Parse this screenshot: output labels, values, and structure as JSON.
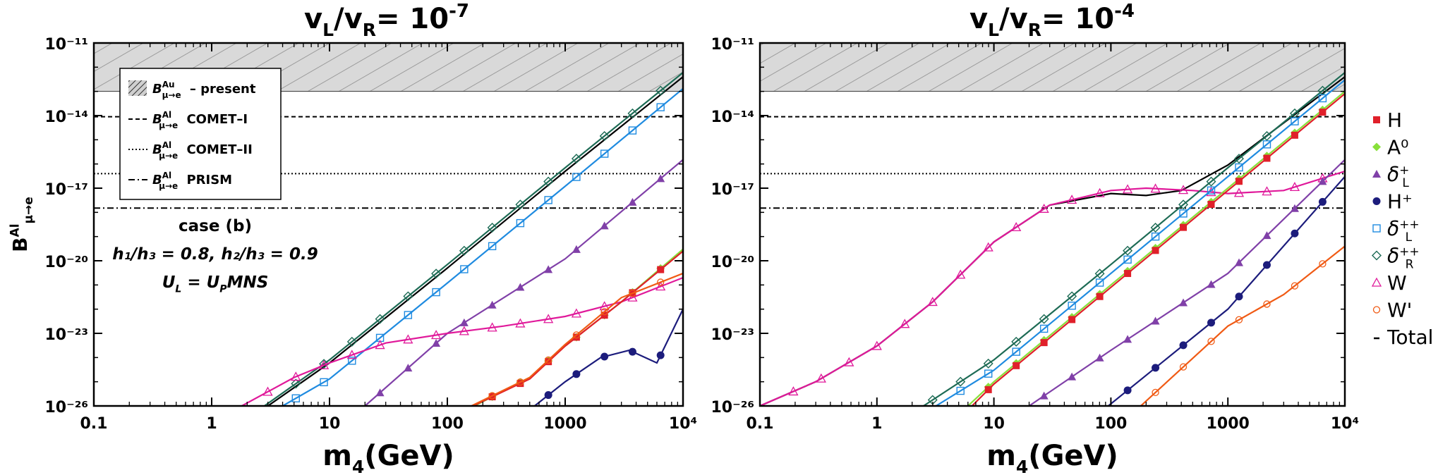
{
  "chart_data": [
    {
      "type": "line",
      "title": "v_L/v_R= 10^{-7}",
      "xlabel": "m_4(GeV)",
      "ylabel": "B^{Al}_{μ→e}",
      "x_scale": "log",
      "y_scale": "log",
      "xlim": [
        0.1,
        10000
      ],
      "ylim": [
        1e-26,
        1e-11
      ],
      "x_ticks": [
        "0.1",
        "1",
        "10",
        "100",
        "1000",
        "10⁴"
      ],
      "y_ticks": [
        "10⁻²⁶",
        "10⁻²³",
        "10⁻²⁰",
        "10⁻¹⁷",
        "10⁻¹⁴",
        "10⁻¹¹"
      ],
      "excluded_band": {
        "y_from": 1e-13,
        "y_to": 1e-11
      },
      "limits": [
        {
          "name": "B^{Al}_{μ→e} COMET–I",
          "style": "dashed",
          "y": 9e-15
        },
        {
          "name": "B^{Al}_{μ→e} COMET–II",
          "style": "dotted",
          "y": 4e-17
        },
        {
          "name": "B^{Al}_{μ→e} PRISM",
          "style": "dashdot",
          "y": 1.5e-18
        }
      ],
      "annotation": {
        "case": "case (b)",
        "couplings": "h₁/h₃ = 0.8,  h₂/h₃ = 0.9",
        "mixing": "U_L = U_PMNS"
      },
      "series": [
        {
          "name": "Total",
          "color": "#000000",
          "x": [
            3,
            10,
            100,
            1000,
            10000
          ],
          "y": [
            1e-26,
            6e-25,
            5e-21,
            5e-17,
            4e-13
          ]
        },
        {
          "name": "δ_R^{++}",
          "color": "#1d6b55",
          "x": [
            2.8,
            10,
            100,
            1000,
            10000
          ],
          "y": [
            1e-26,
            8e-25,
            7e-21,
            7e-17,
            6e-13
          ]
        },
        {
          "name": "δ_L^{++}",
          "color": "#1f8be0",
          "x": [
            4,
            10,
            100,
            1000,
            10000
          ],
          "y": [
            1e-26,
            1.3e-25,
            1.2e-21,
            1.2e-17,
            1.3e-13
          ]
        },
        {
          "name": "δ_L^+",
          "color": "#8040a8",
          "x": [
            20,
            100,
            1000,
            10000
          ],
          "y": [
            1e-26,
            1e-23,
            1.2e-20,
            1.5e-16
          ]
        },
        {
          "name": "W",
          "color": "#e0199a",
          "x": [
            1.8,
            5,
            10,
            30,
            100,
            300,
            1000,
            3000,
            10000
          ],
          "y": [
            1e-26,
            1.5e-25,
            6e-25,
            4e-24,
            1e-23,
            2e-23,
            5e-23,
            2e-22,
            2e-21
          ]
        },
        {
          "name": "A⁰",
          "color": "#88e03a",
          "x": [
            170,
            500,
            1000,
            3000,
            10000
          ],
          "y": [
            1e-26,
            1.5e-25,
            3e-24,
            2e-22,
            3e-20
          ]
        },
        {
          "name": "H",
          "color": "#e0202a",
          "x": [
            165,
            500,
            1000,
            3000,
            10000
          ],
          "y": [
            1e-26,
            1.3e-25,
            3e-24,
            2e-22,
            2.5e-20
          ]
        },
        {
          "name": "W'",
          "color": "#f05a14",
          "x": [
            160,
            500,
            1000,
            3000,
            10000
          ],
          "y": [
            1e-26,
            1.5e-25,
            3.5e-24,
            3e-22,
            3e-21
          ]
        },
        {
          "name": "H⁺",
          "color": "#1c1c7c",
          "x": [
            550,
            1000,
            2000,
            3500,
            6000,
            10000
          ],
          "y": [
            1e-26,
            1e-25,
            1e-24,
            2e-24,
            6e-25,
            1e-22
          ]
        }
      ]
    },
    {
      "type": "line",
      "title": "v_L/v_R= 10^{-4}",
      "xlabel": "m_4(GeV)",
      "ylabel": "",
      "x_scale": "log",
      "y_scale": "log",
      "xlim": [
        0.1,
        10000
      ],
      "ylim": [
        1e-26,
        1e-11
      ],
      "x_ticks": [
        "0.1",
        "1",
        "10",
        "100",
        "1000",
        "10⁴"
      ],
      "y_ticks": [
        "10⁻²⁶",
        "10⁻²³",
        "10⁻²⁰",
        "10⁻¹⁷",
        "10⁻¹⁴",
        "10⁻¹¹"
      ],
      "excluded_band": {
        "y_from": 1e-13,
        "y_to": 1e-11
      },
      "limits": [
        {
          "name": "COMET–I",
          "style": "dashed",
          "y": 9e-15
        },
        {
          "name": "COMET–II",
          "style": "dotted",
          "y": 4e-17
        },
        {
          "name": "PRISM",
          "style": "dashdot",
          "y": 1.5e-18
        }
      ],
      "series": [
        {
          "name": "Total",
          "color": "#000000",
          "x": [
            0.1,
            0.3,
            1,
            3,
            10,
            30,
            100,
            200,
            400,
            1000,
            3000,
            10000
          ],
          "y": [
            1e-26,
            1e-25,
            3e-24,
            2e-22,
            6e-20,
            2e-18,
            6e-18,
            5e-18,
            8e-18,
            9e-17,
            5e-15,
            4e-13
          ]
        },
        {
          "name": "W",
          "color": "#e0199a",
          "x": [
            0.1,
            0.3,
            1,
            3,
            10,
            30,
            100,
            200,
            500,
            1000,
            3000,
            10000
          ],
          "y": [
            1e-26,
            1e-25,
            3e-24,
            2e-22,
            6e-20,
            2e-18,
            8e-18,
            1e-17,
            8e-18,
            6e-18,
            8e-18,
            5e-17
          ]
        },
        {
          "name": "δ_R^{++}",
          "color": "#1d6b55",
          "x": [
            2.5,
            10,
            100,
            1000,
            10000
          ],
          "y": [
            1e-26,
            8e-25,
            7e-21,
            7e-17,
            6e-13
          ]
        },
        {
          "name": "δ_L^{++}",
          "color": "#1f8be0",
          "x": [
            3.2,
            10,
            100,
            1000,
            10000
          ],
          "y": [
            1e-26,
            3e-25,
            3e-21,
            3e-17,
            3e-13
          ]
        },
        {
          "name": "A⁰",
          "color": "#88e03a",
          "x": [
            6,
            10,
            100,
            1000,
            10000
          ],
          "y": [
            1e-26,
            1e-25,
            1e-21,
            1e-17,
            1e-13
          ]
        },
        {
          "name": "H",
          "color": "#e0202a",
          "x": [
            6.5,
            10,
            100,
            1000,
            10000
          ],
          "y": [
            1e-26,
            8e-26,
            8e-22,
            8e-18,
            8e-14
          ]
        },
        {
          "name": "δ_L^+",
          "color": "#8040a8",
          "x": [
            20,
            100,
            1000,
            10000
          ],
          "y": [
            1e-26,
            2e-24,
            3e-21,
            1.5e-16
          ]
        },
        {
          "name": "H⁺",
          "color": "#1c1c7c",
          "x": [
            95,
            1000,
            10000
          ],
          "y": [
            1e-26,
            1e-22,
            3e-17
          ]
        },
        {
          "name": "W'",
          "color": "#f05a14",
          "x": [
            180,
            1000,
            3000,
            10000
          ],
          "y": [
            1e-26,
            2e-23,
            4e-22,
            4e-20
          ]
        }
      ]
    }
  ],
  "inset_legend": [
    {
      "symbol": "B",
      "sup": "Au",
      "sub": "μ→e",
      "text": "– present",
      "style": "hatch"
    },
    {
      "symbol": "B",
      "sup": "Al",
      "sub": "μ→e",
      "text": "COMET–I",
      "style": "dashed"
    },
    {
      "symbol": "B",
      "sup": "Al",
      "sub": "μ→e",
      "text": "COMET–II",
      "style": "dotted"
    },
    {
      "symbol": "B",
      "sup": "Al",
      "sub": "μ→e",
      "text": "PRISM",
      "style": "dashdot"
    }
  ],
  "side_legend": [
    {
      "label": "H",
      "color": "#e0202a",
      "marker": "square"
    },
    {
      "label": "A⁰",
      "color": "#88e03a",
      "marker": "diamond"
    },
    {
      "label": "δ",
      "sub": "L",
      "sup": "+",
      "color": "#8040a8",
      "marker": "triangle"
    },
    {
      "label": "H⁺",
      "color": "#1c1c7c",
      "marker": "circle"
    },
    {
      "label": "δ",
      "sub": "L",
      "sup": "++",
      "color": "#1f8be0",
      "marker": "open-square"
    },
    {
      "label": "δ",
      "sub": "R",
      "sup": "++",
      "color": "#1d6b55",
      "marker": "open-diamond"
    },
    {
      "label": "W",
      "color": "#e0199a",
      "marker": "open-triangle"
    },
    {
      "label": "W'",
      "color": "#f05a14",
      "marker": "open-circle"
    },
    {
      "label": "Total",
      "color": "#000000",
      "marker": "line"
    }
  ]
}
